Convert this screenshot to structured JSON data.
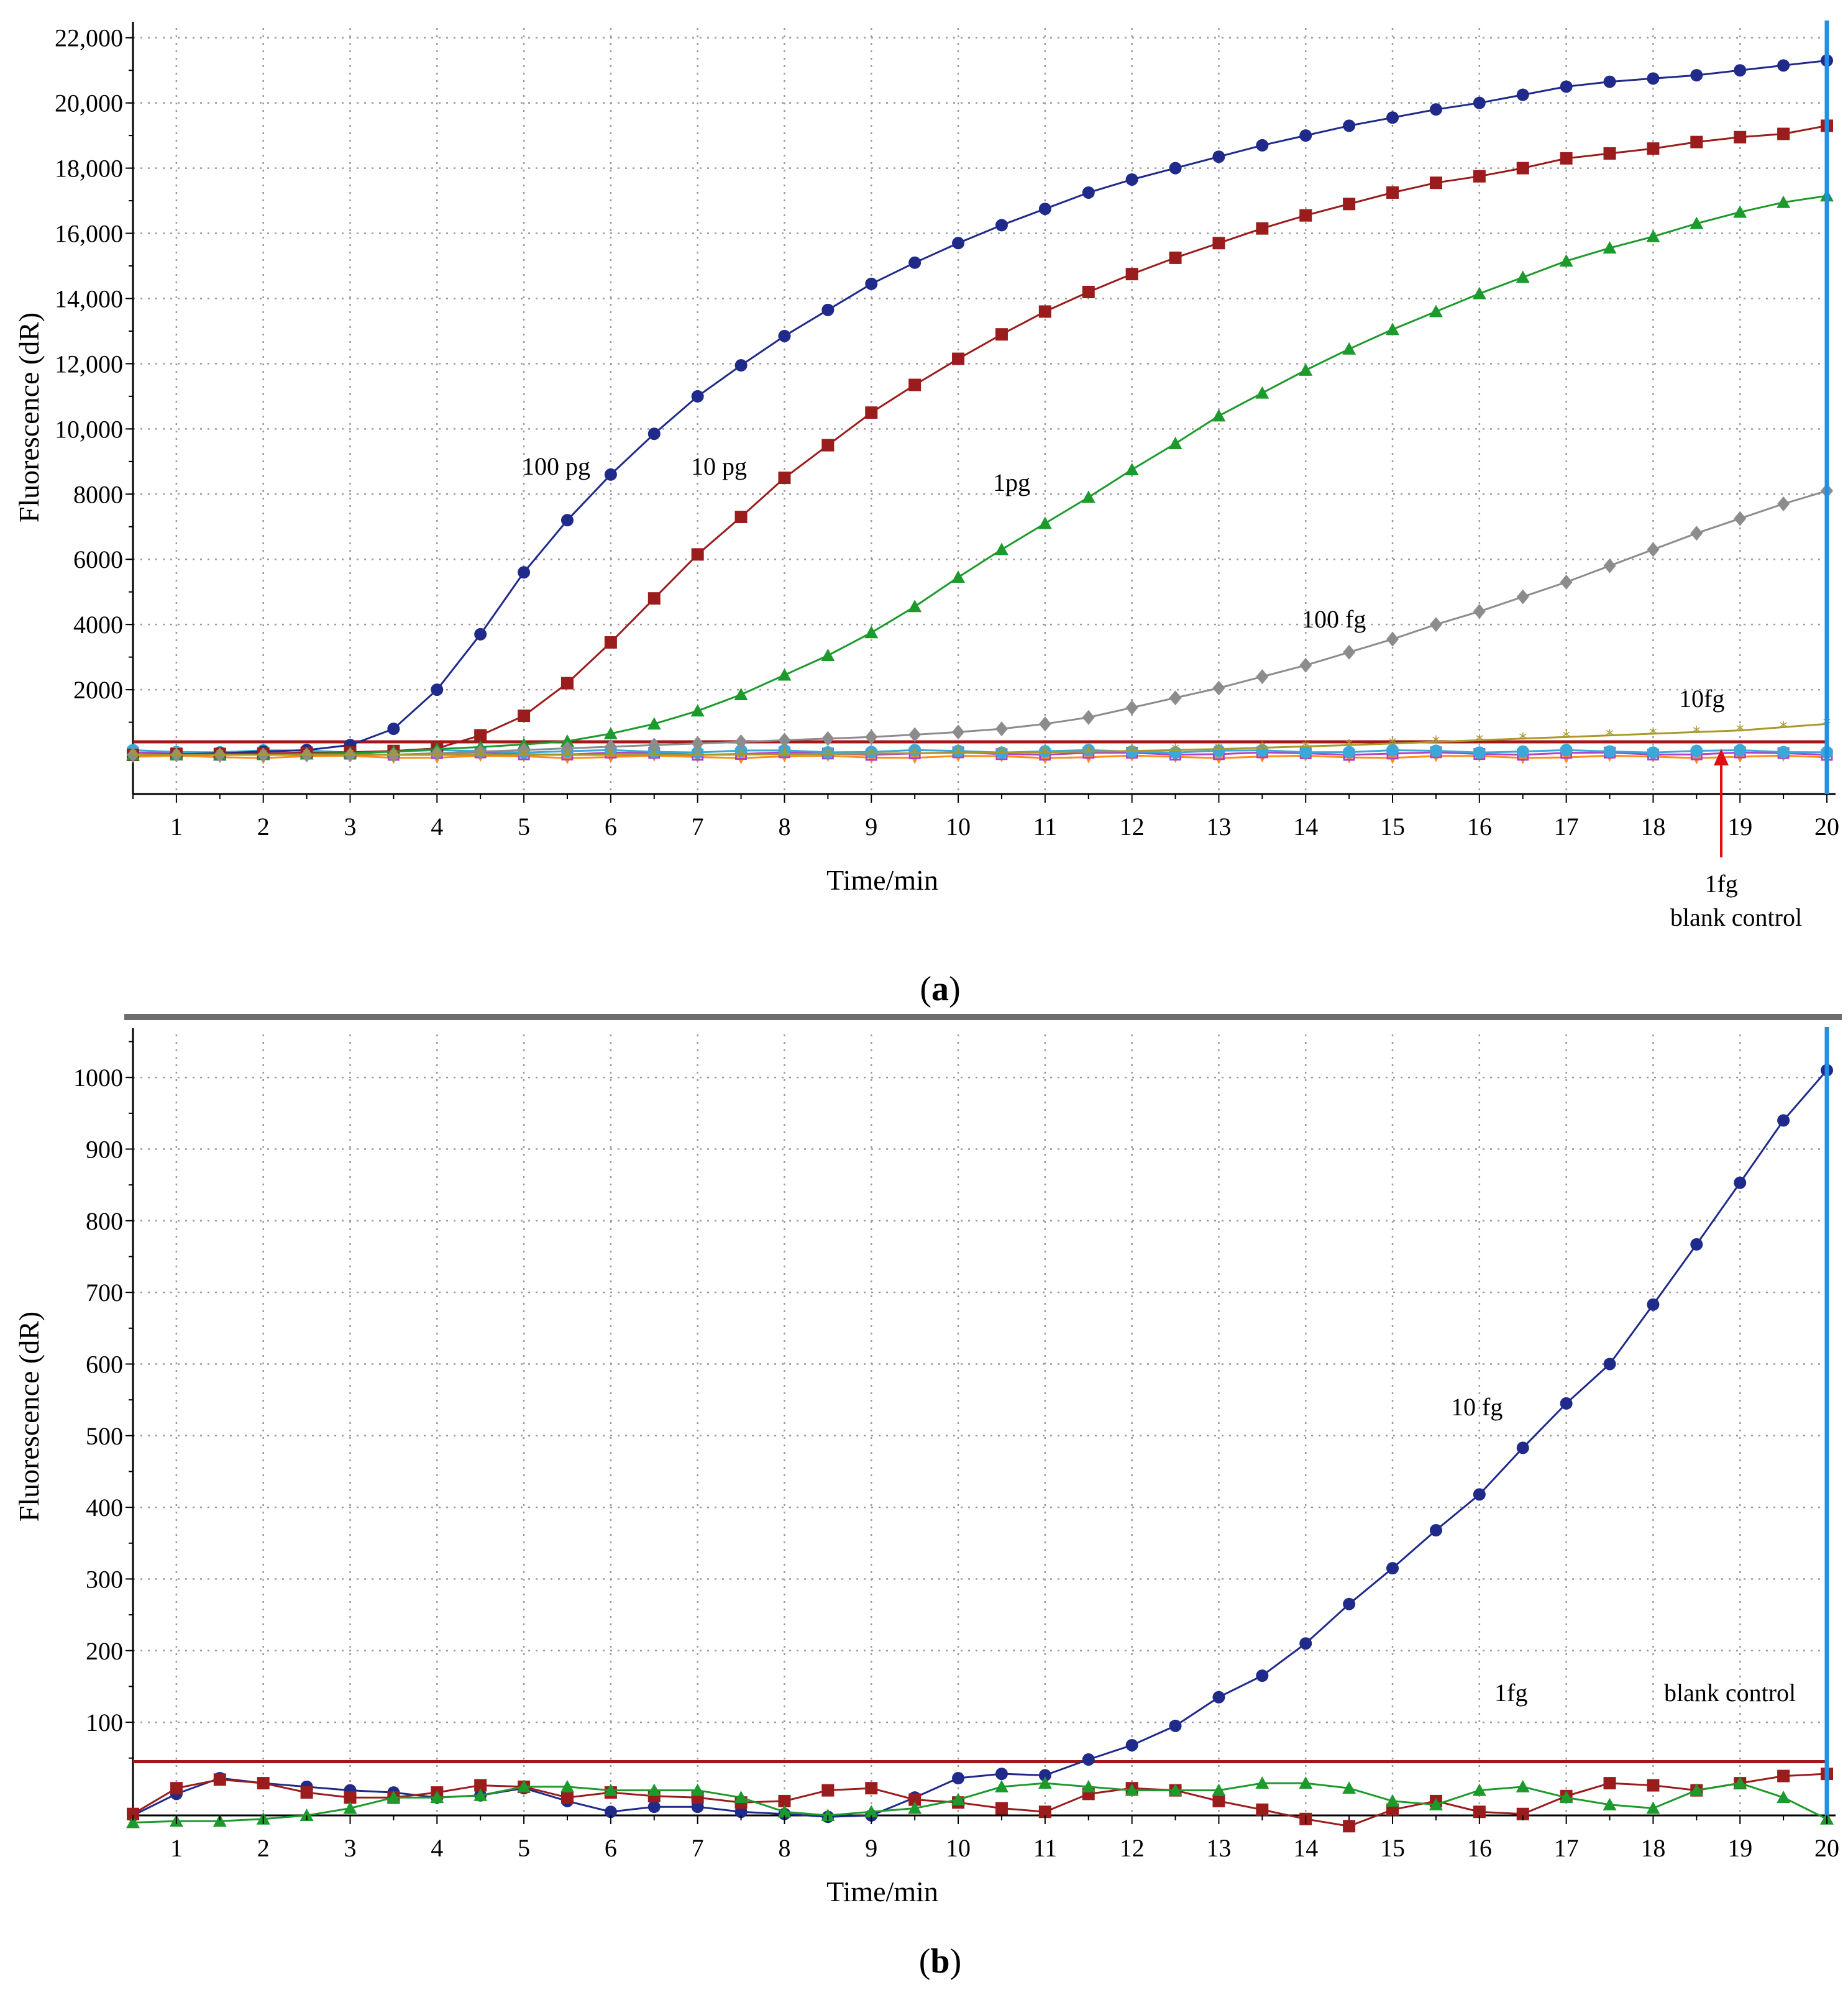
{
  "colors": {
    "s100pg": "#1f2a8a",
    "s10pg": "#9b1c1c",
    "s1pg": "#1d9a2c",
    "s100fg": "#8c8c8c",
    "s10fg": "#a89a2a",
    "threshold": "#a01818",
    "cursor": "#1e90e6",
    "flatA": "#ff8c1a",
    "flatB": "#b044c8",
    "flatC": "#3aa8d8",
    "grid": "#9a9a9a",
    "divider": "#6d6d6d"
  },
  "panel_labels": [
    {
      "open": "(",
      "letter": "a",
      "close": ")"
    },
    {
      "open": "(",
      "letter": "b",
      "close": ")"
    }
  ],
  "chart_data": [
    {
      "type": "line",
      "panel": "a",
      "title": "",
      "xlabel": "Time/min",
      "ylabel": "Fluorescence (dR)",
      "xlim": [
        0.5,
        20
      ],
      "ylim": [
        -1200,
        22300
      ],
      "x_ticks": [
        1,
        2,
        3,
        4,
        5,
        6,
        7,
        8,
        9,
        10,
        11,
        12,
        13,
        14,
        15,
        16,
        17,
        18,
        19,
        20
      ],
      "x_tick_labels": [
        "1",
        "2",
        "3",
        "4",
        "5",
        "6",
        "7",
        "8",
        "9",
        "10",
        "11",
        "12",
        "13",
        "14",
        "15",
        "16",
        "17",
        "18",
        "19",
        "20"
      ],
      "y_ticks": [
        2000,
        4000,
        6000,
        8000,
        10000,
        12000,
        14000,
        16000,
        18000,
        20000,
        22000
      ],
      "y_tick_labels": [
        "2000",
        "4000",
        "6000",
        "8000",
        "10,000",
        "12,000",
        "14,000",
        "16,000",
        "18,000",
        "20,000",
        "22,000"
      ],
      "threshold": 400,
      "cursor_x": 20,
      "grid": true,
      "x": [
        0.5,
        1,
        1.5,
        2,
        2.5,
        3,
        3.5,
        4,
        4.5,
        5,
        5.5,
        6,
        6.5,
        7,
        7.5,
        8,
        8.5,
        9,
        9.5,
        10,
        10.5,
        11,
        11.5,
        12,
        12.5,
        13,
        13.5,
        14,
        14.5,
        15,
        15.5,
        16,
        16.5,
        17,
        17.5,
        18,
        18.5,
        19,
        19.5,
        20
      ],
      "series": [
        {
          "name": "100 pg",
          "marker": "circle",
          "color": "#1f2a8a",
          "values": [
            0,
            20,
            50,
            100,
            150,
            300,
            800,
            2000,
            3700,
            5600,
            7200,
            8600,
            9850,
            11000,
            11950,
            12850,
            13650,
            14450,
            15100,
            15700,
            16250,
            16750,
            17250,
            17650,
            18000,
            18350,
            18700,
            19000,
            19300,
            19550,
            19800,
            20000,
            20250,
            20500,
            20650,
            20750,
            20850,
            21000,
            21150,
            21300
          ]
        },
        {
          "name": "10 pg",
          "marker": "square",
          "color": "#9b1c1c",
          "values": [
            0,
            20,
            30,
            40,
            60,
            80,
            120,
            200,
            600,
            1200,
            2200,
            3450,
            4800,
            6150,
            7300,
            8500,
            9500,
            10500,
            11350,
            12150,
            12900,
            13600,
            14200,
            14750,
            15250,
            15700,
            16150,
            16550,
            16900,
            17250,
            17550,
            17750,
            18000,
            18300,
            18450,
            18600,
            18800,
            18950,
            19050,
            19300
          ]
        },
        {
          "name": "1pg",
          "marker": "triangle",
          "color": "#1d9a2c",
          "values": [
            0,
            0,
            0,
            10,
            30,
            60,
            100,
            180,
            240,
            320,
            420,
            650,
            950,
            1350,
            1850,
            2450,
            3050,
            3750,
            4550,
            5450,
            6300,
            7100,
            7900,
            8750,
            9550,
            10400,
            11100,
            11800,
            12450,
            13050,
            13600,
            14150,
            14650,
            15150,
            15550,
            15900,
            16300,
            16650,
            16950,
            17150
          ]
        },
        {
          "name": "100 fg",
          "marker": "diamond",
          "color": "#8c8c8c",
          "values": [
            0,
            0,
            0,
            0,
            0,
            0,
            0,
            50,
            100,
            150,
            200,
            250,
            300,
            350,
            400,
            450,
            500,
            550,
            620,
            700,
            800,
            950,
            1150,
            1450,
            1750,
            2050,
            2400,
            2750,
            3150,
            3550,
            4000,
            4400,
            4850,
            5300,
            5800,
            6300,
            6800,
            7250,
            7700,
            8100
          ]
        },
        {
          "name": "10fg",
          "marker": "star",
          "color": "#a89a2a",
          "values": [
            0,
            0,
            0,
            0,
            0,
            0,
            0,
            0,
            0,
            0,
            0,
            0,
            0,
            0,
            10,
            20,
            30,
            40,
            50,
            60,
            70,
            80,
            100,
            120,
            150,
            180,
            220,
            260,
            300,
            350,
            400,
            450,
            500,
            550,
            600,
            650,
            700,
            750,
            850,
            950
          ]
        }
      ],
      "flat_series": [
        "1fg",
        "blank control"
      ],
      "annotations": [
        {
          "text": "100 pg",
          "at": [
            4.9,
            8700
          ]
        },
        {
          "text": "10 pg",
          "at": [
            6.7,
            8700
          ]
        },
        {
          "text": "1pg",
          "at": [
            10.6,
            8100
          ]
        },
        {
          "text": "100 fg",
          "at": [
            14.4,
            3900
          ]
        },
        {
          "text": "10fg",
          "at": [
            17.6,
            1550
          ]
        },
        {
          "text": "1fg",
          "at": [
            19.0,
            -4700
          ]
        },
        {
          "text": "blank control",
          "at": [
            19.0,
            -5800
          ]
        }
      ]
    },
    {
      "type": "line",
      "panel": "b",
      "title": "",
      "xlabel": "Time/min",
      "ylabel": "Fluorescence (dR)",
      "xlim": [
        0.5,
        20
      ],
      "ylim": [
        -30,
        1060
      ],
      "x_ticks": [
        1,
        2,
        3,
        4,
        5,
        6,
        7,
        8,
        9,
        10,
        11,
        12,
        13,
        14,
        15,
        16,
        17,
        18,
        19,
        20
      ],
      "x_tick_labels": [
        "1",
        "2",
        "3",
        "4",
        "5",
        "6",
        "7",
        "8",
        "9",
        "10",
        "11",
        "12",
        "13",
        "14",
        "15",
        "16",
        "17",
        "18",
        "19",
        "20"
      ],
      "y_ticks": [
        100,
        200,
        300,
        400,
        500,
        600,
        700,
        800,
        900,
        1000
      ],
      "y_tick_labels": [
        "100",
        "200",
        "300",
        "400",
        "500",
        "600",
        "700",
        "800",
        "900",
        "1000"
      ],
      "threshold": 45,
      "cursor_x": 20,
      "grid": true,
      "x": [
        0.5,
        1,
        1.5,
        2,
        2.5,
        3,
        3.5,
        4,
        4.5,
        5,
        5.5,
        6,
        6.5,
        7,
        7.5,
        8,
        8.5,
        9,
        9.5,
        10,
        10.5,
        11,
        11.5,
        12,
        12.5,
        13,
        13.5,
        14,
        14.5,
        15,
        15.5,
        16,
        16.5,
        17,
        17.5,
        18,
        18.5,
        19,
        19.5,
        20
      ],
      "series": [
        {
          "name": "10 fg",
          "marker": "circle",
          "color": "#1f2a8a",
          "values": [
            -30,
            0,
            22,
            15,
            10,
            5,
            2,
            -5,
            -2,
            8,
            -10,
            -25,
            -18,
            -18,
            -25,
            -28,
            -32,
            -30,
            -5,
            22,
            28,
            26,
            48,
            68,
            95,
            135,
            165,
            210,
            265,
            315,
            368,
            418,
            483,
            545,
            600,
            683,
            767,
            853,
            940,
            1010
          ]
        },
        {
          "name": "1fg",
          "marker": "square",
          "color": "#9b1c1c",
          "values": [
            -28,
            8,
            20,
            15,
            2,
            -5,
            -5,
            2,
            12,
            10,
            -5,
            2,
            -3,
            -5,
            -12,
            -10,
            5,
            8,
            -8,
            -12,
            -20,
            -25,
            0,
            8,
            5,
            -10,
            -22,
            -35,
            -45,
            -22,
            -10,
            -25,
            -28,
            -3,
            15,
            12,
            5,
            15,
            25,
            28
          ]
        },
        {
          "name": "blank control",
          "marker": "triangle",
          "color": "#1d9a2c",
          "values": [
            -40,
            -38,
            -38,
            -35,
            -30,
            -20,
            -5,
            -5,
            -2,
            10,
            10,
            5,
            5,
            5,
            -5,
            -25,
            -30,
            -25,
            -20,
            -8,
            10,
            15,
            10,
            5,
            5,
            5,
            15,
            15,
            8,
            -10,
            -15,
            5,
            10,
            -5,
            -15,
            -20,
            5,
            15,
            -5,
            -35
          ]
        }
      ],
      "annotations": [
        {
          "text": "10 fg",
          "at": [
            15.6,
            500
          ]
        },
        {
          "text": "1fg",
          "at": [
            16.8,
            55
          ]
        },
        {
          "text": "blank control",
          "at": [
            19.0,
            55
          ]
        }
      ]
    }
  ]
}
